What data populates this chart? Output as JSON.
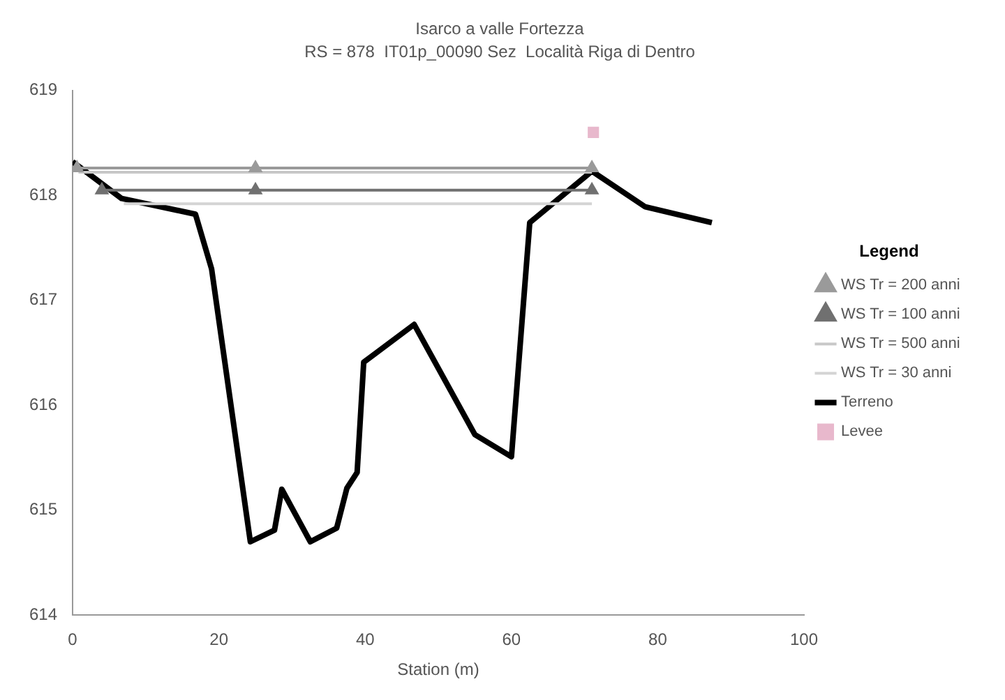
{
  "chart_data": {
    "type": "line",
    "title": "Isarco a valle Fortezza",
    "subtitle": "RS = 878  IT01p_00090 Sez  Località Riga di Dentro",
    "xlabel": "Station (m)",
    "legend_title": "Legend",
    "legend": "right",
    "grid": false,
    "xlim": [
      0,
      100
    ],
    "xticks": [
      0,
      20,
      40,
      60,
      80,
      100
    ],
    "ylim": [
      614,
      619
    ],
    "yticks": [
      614,
      615,
      616,
      617,
      618,
      619
    ],
    "series": [
      {
        "name": "WS Tr = 200 anni",
        "color": "#9a9a9a",
        "marker": "triangle",
        "x": [
          0.6,
          25,
          71
        ],
        "values": [
          618.26,
          618.26,
          618.26
        ]
      },
      {
        "name": "WS Tr = 100 anni",
        "color": "#707070",
        "marker": "triangle",
        "x": [
          4,
          25,
          71
        ],
        "values": [
          618.05,
          618.05,
          618.05
        ]
      },
      {
        "name": "WS Tr = 500 anni",
        "color": "#c8c8c8",
        "marker": "none",
        "x": [
          0.8,
          71
        ],
        "values": [
          618.22,
          618.22
        ]
      },
      {
        "name": "WS Tr = 30 anni",
        "color": "#d4d4d4",
        "marker": "none",
        "x": [
          7,
          71
        ],
        "values": [
          617.92,
          617.92
        ]
      },
      {
        "name": "Terreno",
        "color": "#000000",
        "marker": "none",
        "x": [
          0,
          6.7,
          16.8,
          19.0,
          24.3,
          27.6,
          28.6,
          32.5,
          36.1,
          37.5,
          38.9,
          39.8,
          46.7,
          55.0,
          60.0,
          62.5,
          71.0,
          78.3,
          87.4
        ],
        "values": [
          618.32,
          617.97,
          617.82,
          617.3,
          614.7,
          614.81,
          615.2,
          614.7,
          614.83,
          615.21,
          615.36,
          616.41,
          616.77,
          615.72,
          615.51,
          617.74,
          618.23,
          617.89,
          617.74
        ]
      },
      {
        "name": "Levee",
        "type": "scatter",
        "color": "#e8b8cc",
        "marker": "square",
        "x": [
          71.2
        ],
        "values": [
          618.6
        ]
      }
    ]
  }
}
